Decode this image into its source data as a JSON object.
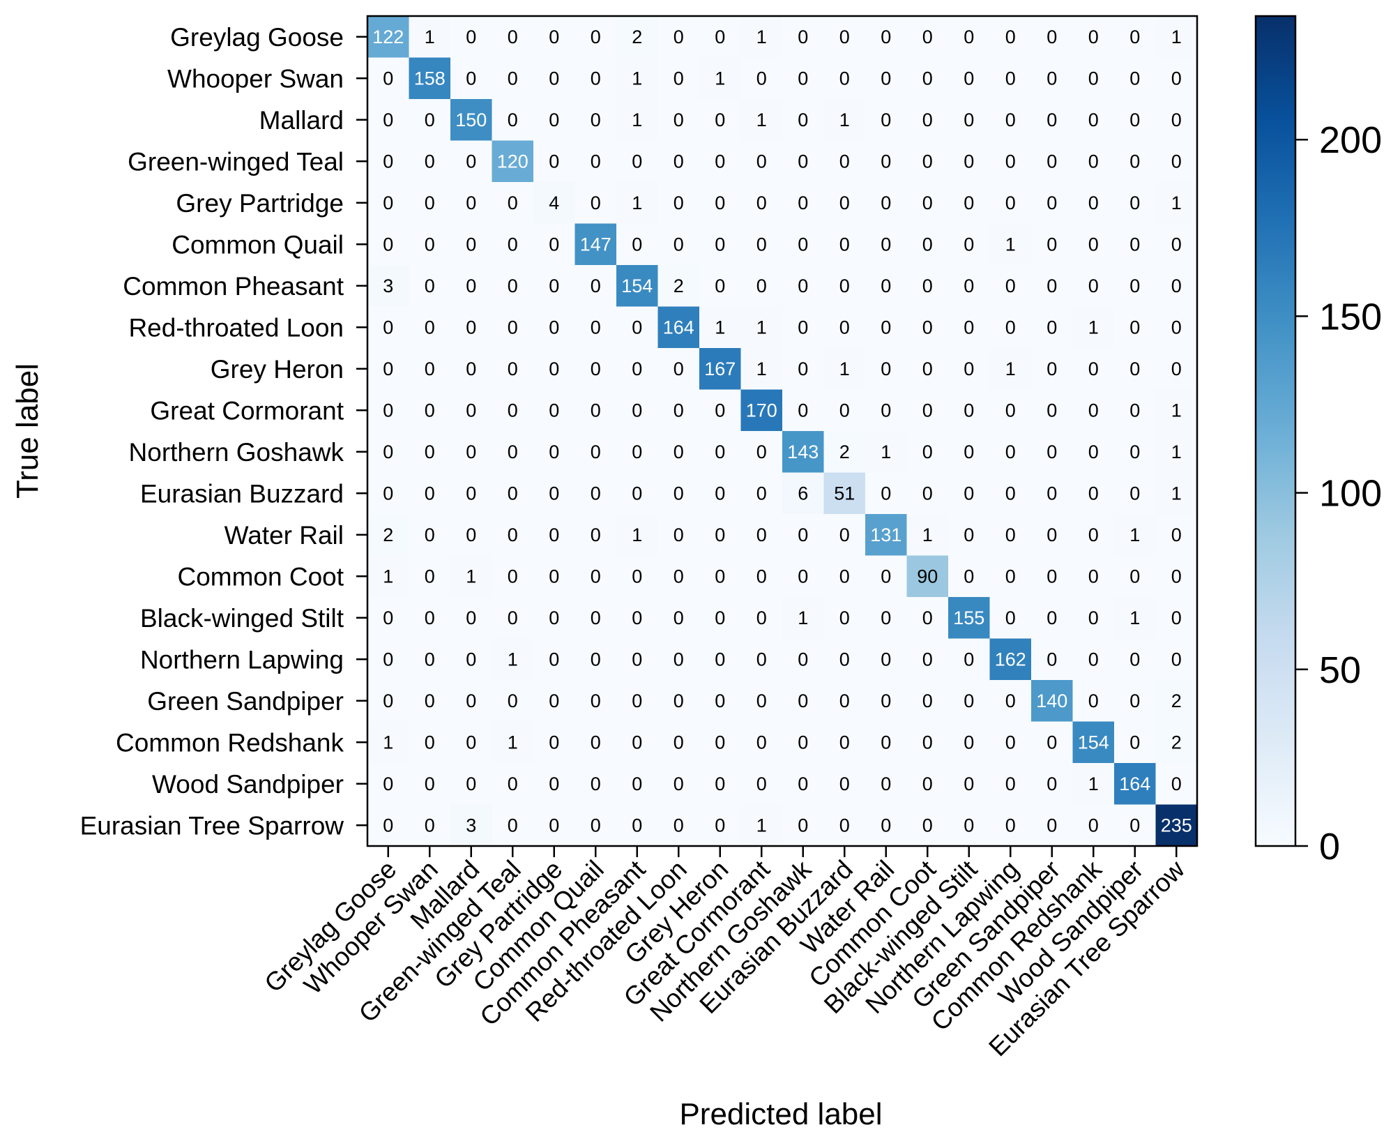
{
  "chart_data": {
    "type": "heatmap",
    "title": "",
    "xlabel": "Predicted label",
    "ylabel": "True label",
    "colormap": "Blues",
    "vmin": 0,
    "vmax": 235,
    "colorbar_ticks": [
      0,
      50,
      100,
      150,
      200
    ],
    "colorbar_tick_labels": [
      "0",
      "50",
      "100",
      "150",
      "200"
    ],
    "labels": [
      "Greylag Goose",
      "Whooper Swan",
      "Mallard",
      "Green-winged Teal",
      "Grey Partridge",
      "Common Quail",
      "Common Pheasant",
      "Red-throated Loon",
      "Grey Heron",
      "Great Cormorant",
      "Northern Goshawk",
      "Eurasian Buzzard",
      "Water Rail",
      "Common Coot",
      "Black-winged Stilt",
      "Northern Lapwing",
      "Green Sandpiper",
      "Common Redshank",
      "Wood Sandpiper",
      "Eurasian Tree Sparrow"
    ],
    "matrix": [
      [
        122,
        1,
        0,
        0,
        0,
        0,
        2,
        0,
        0,
        1,
        0,
        0,
        0,
        0,
        0,
        0,
        0,
        0,
        0,
        1
      ],
      [
        0,
        158,
        0,
        0,
        0,
        0,
        1,
        0,
        1,
        0,
        0,
        0,
        0,
        0,
        0,
        0,
        0,
        0,
        0,
        0
      ],
      [
        0,
        0,
        150,
        0,
        0,
        0,
        1,
        0,
        0,
        1,
        0,
        1,
        0,
        0,
        0,
        0,
        0,
        0,
        0,
        0
      ],
      [
        0,
        0,
        0,
        120,
        0,
        0,
        0,
        0,
        0,
        0,
        0,
        0,
        0,
        0,
        0,
        0,
        0,
        0,
        0,
        0
      ],
      [
        0,
        0,
        0,
        0,
        4,
        0,
        1,
        0,
        0,
        0,
        0,
        0,
        0,
        0,
        0,
        0,
        0,
        0,
        0,
        1
      ],
      [
        0,
        0,
        0,
        0,
        0,
        147,
        0,
        0,
        0,
        0,
        0,
        0,
        0,
        0,
        0,
        1,
        0,
        0,
        0,
        0
      ],
      [
        3,
        0,
        0,
        0,
        0,
        0,
        154,
        2,
        0,
        0,
        0,
        0,
        0,
        0,
        0,
        0,
        0,
        0,
        0,
        0
      ],
      [
        0,
        0,
        0,
        0,
        0,
        0,
        0,
        164,
        1,
        1,
        0,
        0,
        0,
        0,
        0,
        0,
        0,
        1,
        0,
        0
      ],
      [
        0,
        0,
        0,
        0,
        0,
        0,
        0,
        0,
        167,
        1,
        0,
        1,
        0,
        0,
        0,
        1,
        0,
        0,
        0,
        0
      ],
      [
        0,
        0,
        0,
        0,
        0,
        0,
        0,
        0,
        0,
        170,
        0,
        0,
        0,
        0,
        0,
        0,
        0,
        0,
        0,
        1
      ],
      [
        0,
        0,
        0,
        0,
        0,
        0,
        0,
        0,
        0,
        0,
        143,
        2,
        1,
        0,
        0,
        0,
        0,
        0,
        0,
        1
      ],
      [
        0,
        0,
        0,
        0,
        0,
        0,
        0,
        0,
        0,
        0,
        6,
        51,
        0,
        0,
        0,
        0,
        0,
        0,
        0,
        1
      ],
      [
        2,
        0,
        0,
        0,
        0,
        0,
        1,
        0,
        0,
        0,
        0,
        0,
        131,
        1,
        0,
        0,
        0,
        0,
        1,
        0
      ],
      [
        1,
        0,
        1,
        0,
        0,
        0,
        0,
        0,
        0,
        0,
        0,
        0,
        0,
        90,
        0,
        0,
        0,
        0,
        0,
        0
      ],
      [
        0,
        0,
        0,
        0,
        0,
        0,
        0,
        0,
        0,
        0,
        1,
        0,
        0,
        0,
        155,
        0,
        0,
        0,
        1,
        0
      ],
      [
        0,
        0,
        0,
        1,
        0,
        0,
        0,
        0,
        0,
        0,
        0,
        0,
        0,
        0,
        0,
        162,
        0,
        0,
        0,
        0
      ],
      [
        0,
        0,
        0,
        0,
        0,
        0,
        0,
        0,
        0,
        0,
        0,
        0,
        0,
        0,
        0,
        0,
        140,
        0,
        0,
        2
      ],
      [
        1,
        0,
        0,
        1,
        0,
        0,
        0,
        0,
        0,
        0,
        0,
        0,
        0,
        0,
        0,
        0,
        0,
        154,
        0,
        2
      ],
      [
        0,
        0,
        0,
        0,
        0,
        0,
        0,
        0,
        0,
        0,
        0,
        0,
        0,
        0,
        0,
        0,
        0,
        1,
        164,
        0
      ],
      [
        0,
        0,
        3,
        0,
        0,
        0,
        0,
        0,
        0,
        1,
        0,
        0,
        0,
        0,
        0,
        0,
        0,
        0,
        0,
        235
      ]
    ]
  }
}
